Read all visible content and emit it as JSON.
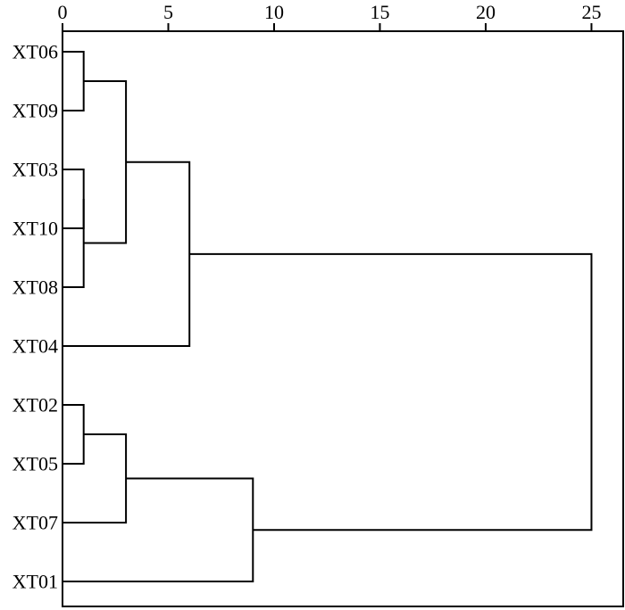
{
  "chart_data": {
    "type": "dendrogram",
    "title": "",
    "xlabel": "",
    "ylabel": "",
    "xlim": [
      0,
      26.5
    ],
    "x_ticks": [
      0,
      5,
      10,
      15,
      20,
      25
    ],
    "x_tick_labels": [
      "0",
      "5",
      "10",
      "15",
      "20",
      "25"
    ],
    "leaves": [
      "XT06",
      "XT09",
      "XT03",
      "XT10",
      "XT08",
      "XT04",
      "XT02",
      "XT05",
      "XT07",
      "XT01"
    ],
    "merges": [
      {
        "a": "XT06",
        "b": "XT09",
        "distance": 1
      },
      {
        "a": "XT10",
        "b": "XT03",
        "distance": 1
      },
      {
        "a": "XT10",
        "b": "XT08",
        "distance": 1
      },
      {
        "a": "XT02",
        "b": "XT05",
        "distance": 1
      },
      {
        "a": "XT06",
        "b": "XT10",
        "distance": 3
      },
      {
        "a": "XT02",
        "b": "XT07",
        "distance": 3
      },
      {
        "a": "XT06",
        "b": "XT04",
        "distance": 6
      },
      {
        "a": "XT02",
        "b": "XT01",
        "distance": 9
      },
      {
        "a": "XT06",
        "b": "XT02",
        "distance": 25
      }
    ]
  }
}
